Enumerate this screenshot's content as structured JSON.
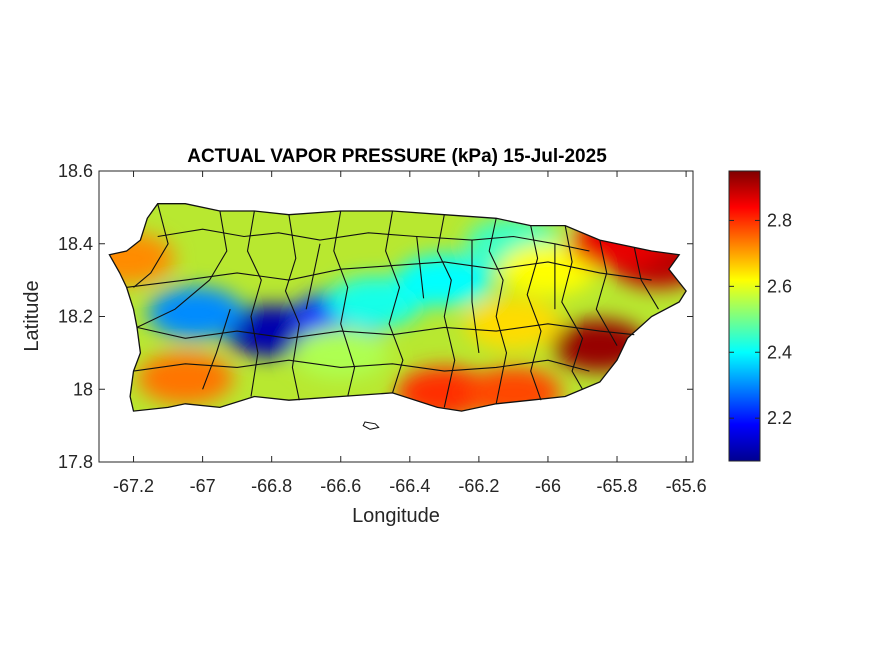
{
  "map": {
    "title": "ACTUAL VAPOR PRESSURE (kPa) 15-Jul-2025",
    "xlabel": "Longitude",
    "ylabel": "Latitude",
    "xlim": [
      -67.3,
      -65.58
    ],
    "ylim": [
      17.8,
      18.6
    ],
    "xticks": [
      {
        "value": -67.2,
        "label": "-67.2"
      },
      {
        "value": -67.0,
        "label": "-67"
      },
      {
        "value": -66.8,
        "label": "-66.8"
      },
      {
        "value": -66.6,
        "label": "-66.6"
      },
      {
        "value": -66.4,
        "label": "-66.4"
      },
      {
        "value": -66.2,
        "label": "-66.2"
      },
      {
        "value": -66.0,
        "label": "-66"
      },
      {
        "value": -65.8,
        "label": "-65.8"
      },
      {
        "value": -65.6,
        "label": "-65.6"
      }
    ],
    "yticks": [
      {
        "value": 17.8,
        "label": "17.8"
      },
      {
        "value": 18.0,
        "label": "18"
      },
      {
        "value": 18.2,
        "label": "18.2"
      },
      {
        "value": 18.4,
        "label": "18.4"
      },
      {
        "value": 18.6,
        "label": "18.6"
      }
    ],
    "region": "Puerto Rico municipalities",
    "colormap": "jet",
    "colorbar": {
      "range": [
        2.07,
        2.95
      ],
      "ticks": [
        {
          "value": 2.2,
          "label": "2.2"
        },
        {
          "value": 2.4,
          "label": "2.4"
        },
        {
          "value": 2.6,
          "label": "2.6"
        },
        {
          "value": 2.8,
          "label": "2.8"
        }
      ]
    },
    "field_hotspots": [
      {
        "lon": -66.8,
        "lat": 18.16,
        "value": 2.1
      },
      {
        "lon": -66.6,
        "lat": 18.2,
        "value": 2.22
      },
      {
        "lon": -67.02,
        "lat": 18.21,
        "value": 2.3
      },
      {
        "lon": -66.5,
        "lat": 18.24,
        "value": 2.42
      },
      {
        "lon": -66.3,
        "lat": 18.3,
        "value": 2.4
      },
      {
        "lon": -66.1,
        "lat": 18.4,
        "value": 2.45
      },
      {
        "lon": -66.0,
        "lat": 18.33,
        "value": 2.62
      },
      {
        "lon": -65.85,
        "lat": 18.12,
        "value": 2.93
      },
      {
        "lon": -65.68,
        "lat": 18.35,
        "value": 2.9
      },
      {
        "lon": -65.8,
        "lat": 18.4,
        "value": 2.86
      },
      {
        "lon": -66.3,
        "lat": 17.99,
        "value": 2.8
      },
      {
        "lon": -66.1,
        "lat": 17.99,
        "value": 2.78
      },
      {
        "lon": -67.05,
        "lat": 18.03,
        "value": 2.74
      },
      {
        "lon": -67.22,
        "lat": 18.36,
        "value": 2.72
      },
      {
        "lon": -66.6,
        "lat": 18.1,
        "value": 2.55
      },
      {
        "lon": -66.1,
        "lat": 18.18,
        "value": 2.65
      }
    ],
    "islands": [
      "Caja de Muertos"
    ]
  }
}
